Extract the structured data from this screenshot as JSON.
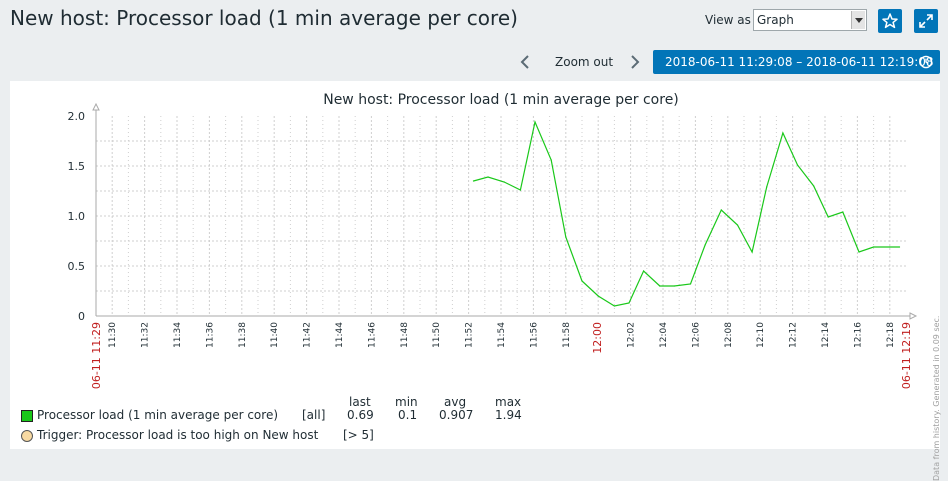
{
  "header": {
    "title": "New host: Processor load (1 min average per core)",
    "view_as_label": "View as",
    "view_as_value": "Graph"
  },
  "toolbar": {
    "zoom_out_label": "Zoom out",
    "time_range": "2018-06-11 11:29:08 – 2018-06-11 12:19:08"
  },
  "graph": {
    "side_note": "Data from history. Generated in 0.09 sec.",
    "legend": {
      "headers": {
        "last": "last",
        "min": "min",
        "avg": "avg",
        "max": "max"
      },
      "item": {
        "name": "Processor load (1 min average per core)",
        "func": "[all]",
        "last": "0.69",
        "min": "0.1",
        "avg": "0.907",
        "max": "1.94",
        "color": "#1ac81a"
      },
      "trigger": {
        "name": "Trigger: Processor load is too high on New host",
        "condition": "[> 5]"
      }
    }
  },
  "chart_data": {
    "type": "line",
    "title": "New host: Processor load (1 min average per core)",
    "x_start_label": "06-11 11:29",
    "x_end_label": "06-11 12:19",
    "x_ticks": [
      "11:30",
      "11:32",
      "11:34",
      "11:36",
      "11:38",
      "11:40",
      "11:42",
      "11:44",
      "11:46",
      "11:48",
      "11:50",
      "11:52",
      "11:54",
      "11:56",
      "11:58",
      "12:00",
      "12:02",
      "12:04",
      "12:06",
      "12:08",
      "12:10",
      "12:12",
      "12:14",
      "12:16",
      "12:18"
    ],
    "x_tick_minutes": [
      1,
      3,
      5,
      7,
      9,
      11,
      13,
      15,
      17,
      19,
      21,
      23,
      25,
      27,
      29,
      31,
      33,
      35,
      37,
      39,
      41,
      43,
      45,
      47,
      49
    ],
    "highlight_tick": "12:00",
    "xlim_minutes": [
      0,
      50
    ],
    "y_ticks": [
      "0",
      "0.5",
      "1.0",
      "1.5",
      "2.0"
    ],
    "ylim": [
      0,
      2.0
    ],
    "grid": true,
    "series": [
      {
        "name": "Processor load (1 min average per core)",
        "color": "#1ac81a",
        "x_minutes": [
          23.3,
          24.2,
          25.2,
          26.2,
          27.1,
          28.1,
          29.0,
          30.0,
          31.0,
          32.0,
          32.9,
          33.8,
          34.8,
          35.7,
          36.7,
          37.6,
          38.6,
          39.6,
          40.5,
          41.4,
          42.4,
          43.3,
          44.3,
          45.2,
          46.1,
          47.1,
          48.0,
          49.0,
          49.6
        ],
        "values": [
          1.35,
          1.39,
          1.34,
          1.26,
          1.94,
          1.56,
          0.79,
          0.35,
          0.2,
          0.1,
          0.13,
          0.45,
          0.3,
          0.3,
          0.32,
          0.71,
          1.06,
          0.91,
          0.64,
          1.29,
          1.83,
          1.51,
          1.3,
          0.99,
          1.04,
          0.64,
          0.69,
          0.69,
          0.69
        ]
      }
    ]
  }
}
